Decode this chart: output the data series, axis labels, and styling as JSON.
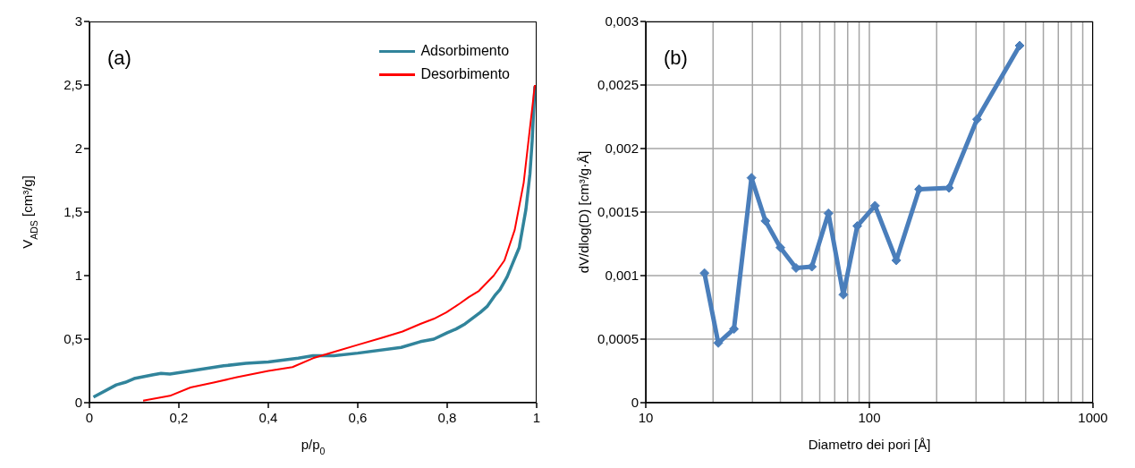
{
  "chart_data": [
    {
      "type": "line",
      "xlabel": "p/p$_{0}$",
      "ylabel": "V$_{ADS}$ [cm³/g]",
      "annotations": [
        "(a)"
      ],
      "legend": "top right",
      "grid": false,
      "marker": "none",
      "xlim": [
        0,
        1
      ],
      "ylim": [
        0,
        3
      ],
      "xticks": [
        0,
        {
          "value": 0.2,
          "label": "0,2"
        },
        {
          "value": 0.4,
          "label": "0,4"
        },
        {
          "value": 0.6,
          "label": "0,6"
        },
        {
          "value": 0.8,
          "label": "0,8"
        },
        1
      ],
      "yticks": [
        0,
        {
          "value": 0.5,
          "label": "0,5"
        },
        1,
        {
          "value": 1.5,
          "label": "1,5"
        },
        2,
        {
          "value": 2.5,
          "label": "2,5"
        },
        3
      ],
      "series": [
        {
          "name": "Adsorbimento",
          "color": "#31849b",
          "x": [
            0.009,
            0.06,
            0.08,
            0.1,
            0.143,
            0.16,
            0.18,
            0.226,
            0.3,
            0.35,
            0.4,
            0.467,
            0.5,
            0.547,
            0.6,
            0.697,
            0.74,
            0.77,
            0.8,
            0.82,
            0.84,
            0.874,
            0.89,
            0.908,
            0.918,
            0.934,
            0.948,
            0.961,
            0.968,
            0.976,
            0.985,
            0.99,
            0.996
          ],
          "values": [
            0.044,
            0.14,
            0.16,
            0.19,
            0.22,
            0.23,
            0.225,
            0.25,
            0.29,
            0.31,
            0.32,
            0.35,
            0.37,
            0.37,
            0.39,
            0.435,
            0.48,
            0.5,
            0.55,
            0.58,
            0.62,
            0.71,
            0.76,
            0.85,
            0.89,
            0.99,
            1.11,
            1.22,
            1.36,
            1.52,
            1.8,
            2.06,
            2.49
          ]
        },
        {
          "name": "Desorbimento",
          "color": "#ff0000",
          "x": [
            0.12,
            0.18,
            0.226,
            0.28,
            0.33,
            0.4,
            0.454,
            0.5,
            0.547,
            0.6,
            0.654,
            0.7,
            0.74,
            0.77,
            0.798,
            0.828,
            0.848,
            0.871,
            0.904,
            0.928,
            0.951,
            0.971,
            0.996
          ],
          "values": [
            0.016,
            0.054,
            0.12,
            0.16,
            0.2,
            0.25,
            0.28,
            0.35,
            0.4,
            0.455,
            0.51,
            0.56,
            0.62,
            0.66,
            0.71,
            0.78,
            0.83,
            0.88,
            1.0,
            1.12,
            1.36,
            1.73,
            2.5
          ]
        }
      ]
    },
    {
      "type": "line",
      "xlabel": "Diametro dei pori [Å]",
      "ylabel": "dV/dlog(D) [cm³/g·Å]",
      "annotations": [
        "(b)"
      ],
      "legend": false,
      "grid": true,
      "marker": "diamond",
      "log": "x",
      "xlim": [
        10,
        1000
      ],
      "ylim": [
        0,
        0.003
      ],
      "xticks": [
        10,
        {
          "value": 20,
          "label": null
        },
        {
          "value": 30,
          "label": null
        },
        {
          "value": 40,
          "label": null
        },
        {
          "value": 50,
          "label": null
        },
        {
          "value": 60,
          "label": null
        },
        {
          "value": 70,
          "label": null
        },
        {
          "value": 80,
          "label": null
        },
        {
          "value": 90,
          "label": null
        },
        100,
        {
          "value": 200,
          "label": null
        },
        {
          "value": 300,
          "label": null
        },
        {
          "value": 400,
          "label": null
        },
        {
          "value": 500,
          "label": null
        },
        {
          "value": 600,
          "label": null
        },
        {
          "value": 700,
          "label": null
        },
        {
          "value": 800,
          "label": null
        },
        {
          "value": 900,
          "label": null
        },
        1000
      ],
      "yticks": [
        0,
        {
          "value": 0.0005,
          "label": "0,0005"
        },
        {
          "value": 0.001,
          "label": "0,001"
        },
        {
          "value": 0.0015,
          "label": "0,0015"
        },
        {
          "value": 0.002,
          "label": "0,002"
        },
        {
          "value": 0.0025,
          "label": "0,0025"
        },
        {
          "value": 0.003,
          "label": "0,003"
        }
      ],
      "series": [
        {
          "color": "#4a7ebb",
          "x": [
            18.3,
            21.1,
            24.8,
            29.7,
            34.3,
            40,
            47,
            55.3,
            65.6,
            76.5,
            88.3,
            106,
            132,
            167,
            227,
            303,
            470
          ],
          "values": [
            0.00102,
            0.00047,
            0.00058,
            0.00177,
            0.00143,
            0.00122,
            0.00106,
            0.00107,
            0.00149,
            0.00085,
            0.00139,
            0.00155,
            0.00112,
            0.00168,
            0.00169,
            0.00223,
            0.00281
          ]
        }
      ]
    }
  ]
}
